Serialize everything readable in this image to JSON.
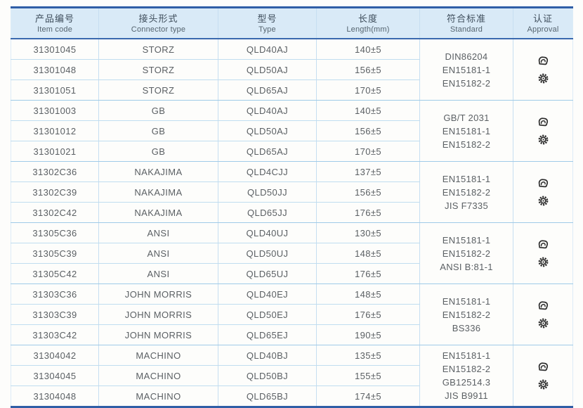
{
  "table": {
    "columns": [
      {
        "zh": "产品编号",
        "en": "Item code"
      },
      {
        "zh": "接头形式",
        "en": "Connector type"
      },
      {
        "zh": "型号",
        "en": "Type"
      },
      {
        "zh": "长度",
        "en": "Length(mm)"
      },
      {
        "zh": "符合标准",
        "en": "Standard"
      },
      {
        "zh": "认证",
        "en": "Approval"
      }
    ],
    "groups": [
      {
        "rows": [
          {
            "item_code": "31301045",
            "connector": "STORZ",
            "type": "QLD40AJ",
            "length": "140±5"
          },
          {
            "item_code": "31301048",
            "connector": "STORZ",
            "type": "QLD50AJ",
            "length": "156±5"
          },
          {
            "item_code": "31301051",
            "connector": "STORZ",
            "type": "QLD65AJ",
            "length": "170±5"
          }
        ],
        "standards": [
          "DIN86204",
          "EN15181-1",
          "EN15182-2"
        ]
      },
      {
        "rows": [
          {
            "item_code": "31301003",
            "connector": "GB",
            "type": "QLD40AJ",
            "length": "140±5"
          },
          {
            "item_code": "31301012",
            "connector": "GB",
            "type": "QLD50AJ",
            "length": "156±5"
          },
          {
            "item_code": "31301021",
            "connector": "GB",
            "type": "QLD65AJ",
            "length": "170±5"
          }
        ],
        "standards": [
          "GB/T 2031",
          "EN15181-1",
          "EN15182-2"
        ]
      },
      {
        "rows": [
          {
            "item_code": "31302C36",
            "connector": "NAKAJIMA",
            "type": "QLD4CJJ",
            "length": "137±5"
          },
          {
            "item_code": "31302C39",
            "connector": "NAKAJIMA",
            "type": "QLD50JJ",
            "length": "156±5"
          },
          {
            "item_code": "31302C42",
            "connector": "NAKAJIMA",
            "type": "QLD65JJ",
            "length": "176±5"
          }
        ],
        "standards": [
          "EN15181-1",
          "EN15182-2",
          "JIS F7335"
        ]
      },
      {
        "rows": [
          {
            "item_code": "31305C36",
            "connector": "ANSI",
            "type": "QLD40UJ",
            "length": "130±5"
          },
          {
            "item_code": "31305C39",
            "connector": "ANSI",
            "type": "QLD50UJ",
            "length": "148±5"
          },
          {
            "item_code": "31305C42",
            "connector": "ANSI",
            "type": "QLD65UJ",
            "length": "176±5"
          }
        ],
        "standards": [
          "EN15181-1",
          "EN15182-2",
          "ANSI B:81-1"
        ]
      },
      {
        "rows": [
          {
            "item_code": "31303C36",
            "connector": "JOHN MORRIS",
            "type": "QLD40EJ",
            "length": "148±5"
          },
          {
            "item_code": "31303C39",
            "connector": "JOHN MORRIS",
            "type": "QLD50EJ",
            "length": "176±5"
          },
          {
            "item_code": "31303C42",
            "connector": "JOHN MORRIS",
            "type": "QLD65EJ",
            "length": "190±5"
          }
        ],
        "standards": [
          "EN15181-1",
          "EN15182-2",
          "BS336"
        ]
      },
      {
        "rows": [
          {
            "item_code": "31304042",
            "connector": "MACHINO",
            "type": "QLD40BJ",
            "length": "135±5"
          },
          {
            "item_code": "31304045",
            "connector": "MACHINO",
            "type": "QLD50BJ",
            "length": "155±5"
          },
          {
            "item_code": "31304048",
            "connector": "MACHINO",
            "type": "QLD65BJ",
            "length": "174±5"
          }
        ],
        "standards": [
          "EN15181-1",
          "EN15182-2",
          "GB12514.3",
          "JIS B9911"
        ]
      }
    ],
    "approval_icons": [
      "certificate-icon",
      "gear-icon"
    ]
  },
  "colors": {
    "thick_rule": "#2f5ea6",
    "header_rule": "#3a69ae",
    "header_bg": "#d9eaf7",
    "row_line": "#c0ddf0",
    "group_line": "#9fcbe8",
    "column_line": "#c6def1",
    "header_text_zh": "#3f4e5c",
    "header_text_en": "#55646f",
    "body_text": "#5b6064",
    "icon_color": "#2d2d2d",
    "page_bg": "#fdfdfb"
  }
}
